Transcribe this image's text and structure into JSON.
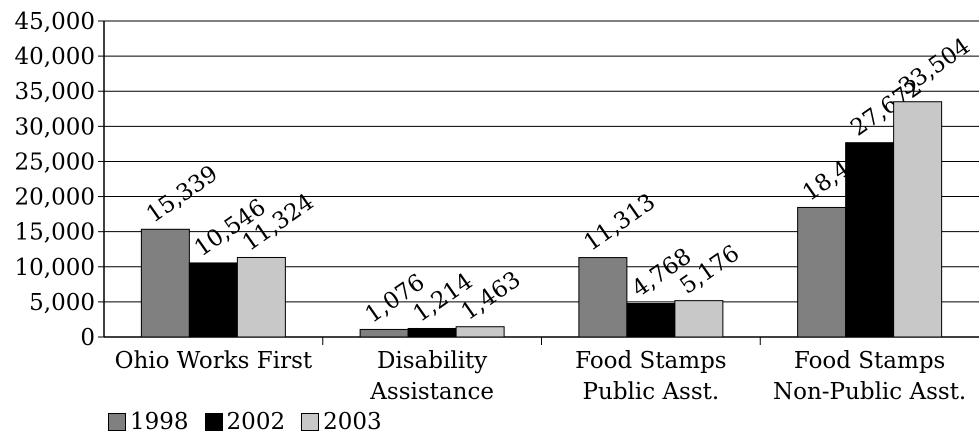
{
  "chart_data": {
    "type": "bar",
    "categories": [
      [
        "Ohio Works First"
      ],
      [
        "Disability",
        "Assistance"
      ],
      [
        "Food Stamps",
        "Public Asst."
      ],
      [
        "Food Stamps",
        "Non-Public Asst."
      ]
    ],
    "series": [
      {
        "name": "1998",
        "color": "#808080",
        "values": [
          15339,
          1076,
          11313,
          18448
        ],
        "labels": [
          "15,339",
          "1,076",
          "11,313",
          "18,448"
        ]
      },
      {
        "name": "2002",
        "color": "#000000",
        "values": [
          10546,
          1214,
          4768,
          27672
        ],
        "labels": [
          "10,546",
          "1,214",
          "4,768",
          "27,672"
        ]
      },
      {
        "name": "2003",
        "color": "#c8c8c8",
        "values": [
          11324,
          1463,
          5176,
          33504
        ],
        "labels": [
          "11,324",
          "1,463",
          "5,176",
          "33,504"
        ]
      }
    ],
    "ylim": [
      0,
      45000
    ],
    "yticks": [
      "0",
      "5,000",
      "10,000",
      "15,000",
      "20,000",
      "25,000",
      "30,000",
      "35,000",
      "40,000",
      "45,000"
    ],
    "grid": true,
    "legend_position": "bottom-left"
  }
}
